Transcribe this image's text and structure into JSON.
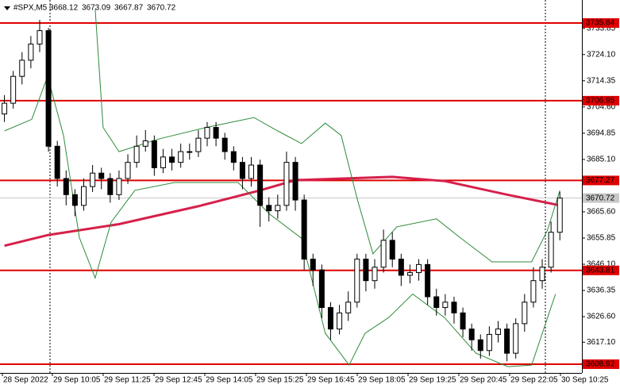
{
  "chart_data": {
    "type": "candlestick",
    "symbol": "#SPX,M5",
    "ohlc": [
      3668.12,
      3673.09,
      3667.87,
      3670.72
    ],
    "open": [
      3702,
      3706,
      3716,
      3722,
      3728,
      3733,
      3690,
      3678,
      3672,
      3668,
      3675,
      3680,
      3678,
      3672,
      3678,
      3684,
      3690,
      3692,
      3682,
      3686,
      3684,
      3688,
      3688,
      3693,
      3697,
      3693,
      3688,
      3684,
      3678,
      3683,
      3668,
      3666,
      3668,
      3684,
      3670,
      3648,
      3644,
      3630,
      3622,
      3628,
      3632,
      3648,
      3640,
      3645,
      3655,
      3648,
      3642,
      3643,
      3646,
      3634,
      3630,
      3632,
      3628,
      3622,
      3618,
      3614,
      3620,
      3622,
      3613,
      3624,
      3632,
      3640,
      3645,
      3658
    ],
    "high": [
      3709,
      3718,
      3725,
      3731,
      3737,
      3734,
      3692,
      3681,
      3674,
      3678,
      3683,
      3682,
      3680,
      3681,
      3687,
      3694,
      3696,
      3694,
      3689,
      3689,
      3691,
      3691,
      3696,
      3699,
      3699,
      3695,
      3690,
      3686,
      3686,
      3685,
      3671,
      3672,
      3688,
      3686,
      3672,
      3650,
      3646,
      3632,
      3631,
      3636,
      3650,
      3650,
      3648,
      3659,
      3658,
      3650,
      3646,
      3648,
      3648,
      3637,
      3635,
      3634,
      3630,
      3624,
      3620,
      3623,
      3625,
      3624,
      3626,
      3635,
      3645,
      3648,
      3662,
      3673.09
    ],
    "low": [
      3699,
      3704,
      3713,
      3719,
      3725,
      3688,
      3675,
      3668,
      3664,
      3666,
      3673,
      3674,
      3669,
      3670,
      3676,
      3682,
      3688,
      3679,
      3680,
      3681,
      3682,
      3685,
      3686,
      3690,
      3690,
      3685,
      3681,
      3674,
      3675,
      3660,
      3662,
      3663,
      3666,
      3666,
      3644,
      3638,
      3626,
      3618,
      3620,
      3625,
      3630,
      3636,
      3637,
      3643,
      3645,
      3638,
      3639,
      3640,
      3631,
      3627,
      3627,
      3624,
      3619,
      3614,
      3611,
      3612,
      3617,
      3610,
      3611,
      3621,
      3630,
      3637,
      3643,
      3655
    ],
    "close": [
      3706,
      3716,
      3722,
      3728,
      3733,
      3690,
      3678,
      3672,
      3668,
      3675,
      3680,
      3678,
      3672,
      3678,
      3684,
      3690,
      3692,
      3682,
      3686,
      3684,
      3688,
      3688,
      3693,
      3697,
      3693,
      3688,
      3684,
      3678,
      3683,
      3668,
      3666,
      3668,
      3684,
      3670,
      3648,
      3644,
      3630,
      3622,
      3628,
      3632,
      3648,
      3640,
      3645,
      3655,
      3648,
      3642,
      3643,
      3646,
      3634,
      3630,
      3632,
      3628,
      3622,
      3618,
      3614,
      3620,
      3622,
      3613,
      3624,
      3632,
      3640,
      3645,
      3658,
      3670.72
    ],
    "up_color": "#ffffff",
    "down_color": "#000000",
    "lines": [
      {
        "color": "#d6204a",
        "x": [
          0,
          5,
          13,
          22,
          29,
          33,
          44,
          50,
          57,
          63
        ],
        "values": [
          3653,
          3657,
          3661,
          3667.7,
          3673.6,
          3677.4,
          3678.6,
          3677,
          3672,
          3668
        ]
      },
      {
        "color": "#2e8b3a",
        "x": [
          10.3,
          11.2,
          13,
          17.5,
          22.9,
          28.3,
          31,
          33.7,
          36.4,
          38.2,
          40,
          41.8,
          44.5,
          49,
          51.7,
          55.3,
          59.8,
          61.6,
          63
        ],
        "values": [
          3741,
          3697,
          3688,
          3692.7,
          3697,
          3700.7,
          3695.7,
          3691,
          3698.6,
          3694,
          3670.6,
          3650,
          3660,
          3663,
          3656,
          3647,
          3647,
          3658.8,
          3673.5
        ]
      },
      {
        "color": "#2e8b3a",
        "x": [
          0,
          3.1,
          4.9,
          6.7,
          8.5,
          10.3,
          12.1,
          14.8,
          19.3,
          26.5,
          30.1,
          33.7,
          36.4,
          39.1,
          40.9,
          43.6,
          46.3,
          49.9,
          53.5,
          57.1,
          59.8,
          62.5
        ],
        "values": [
          3695.7,
          3700,
          3716,
          3694,
          3656,
          3641,
          3661.7,
          3673.6,
          3676.5,
          3676.5,
          3664.7,
          3655.8,
          3620.4,
          3608.6,
          3620.4,
          3626.3,
          3635,
          3626.3,
          3613,
          3608,
          3608.6,
          3635
        ]
      }
    ],
    "levels": [
      {
        "value": 3735.84,
        "color": "#e00000"
      },
      {
        "value": 3706.95,
        "color": "#e00000"
      },
      {
        "value": 3677.27,
        "color": "#e00000"
      },
      {
        "value": 3643.81,
        "color": "#e00000"
      },
      {
        "value": 3608.92,
        "color": "#e00000"
      }
    ],
    "current": 3670.72,
    "xlim": [
      -0.5,
      65.5
    ],
    "ylim": [
      3605.67,
      3744.4
    ],
    "yticks": [
      3733.85,
      {
        "value": 3724.1,
        "label": "3724.10"
      },
      3714.35,
      {
        "value": 3704.6,
        "label": "3704.60"
      },
      3694.85,
      {
        "value": 3685.1,
        "label": "3685.10"
      },
      {
        "value": 3665.6,
        "label": "3665.60"
      },
      3655.85,
      {
        "value": 3646.1,
        "label": "3646.10"
      },
      3636.35,
      {
        "value": 3626.6,
        "label": "3626.60"
      },
      {
        "value": 3617.1,
        "label": "3617.10"
      }
    ],
    "xticks": [
      {
        "value": -0.23,
        "label": "28 Sep 2022"
      },
      {
        "value": 5.44,
        "label": "29 Sep 10:05"
      },
      {
        "value": 11.2,
        "label": "29 Sep 11:25"
      },
      {
        "value": 16.97,
        "label": "29 Sep 12:45"
      },
      {
        "value": 22.73,
        "label": "29 Sep 14:05"
      },
      {
        "value": 28.49,
        "label": "29 Sep 15:25"
      },
      {
        "value": 34.26,
        "label": "29 Sep 16:45"
      },
      {
        "value": 40.02,
        "label": "29 Sep 18:05"
      },
      {
        "value": 45.78,
        "label": "29 Sep 19:25"
      },
      {
        "value": 51.54,
        "label": "29 Sep 20:45"
      },
      {
        "value": 57.31,
        "label": "29 Sep 22:05"
      },
      {
        "value": 63.07,
        "label": "30 Sep 10:25"
      }
    ]
  }
}
